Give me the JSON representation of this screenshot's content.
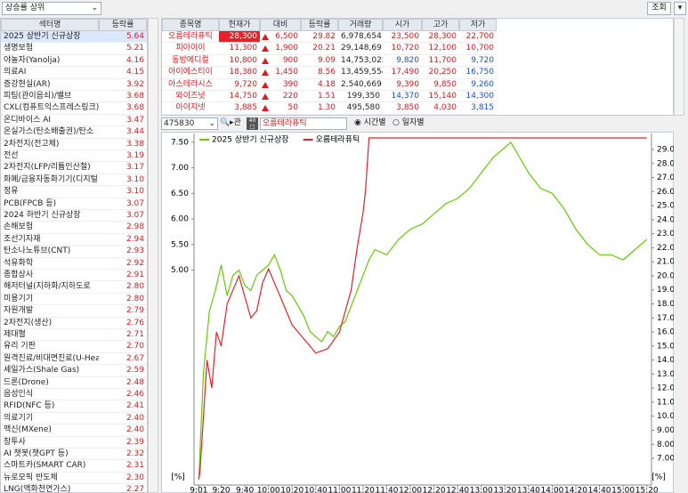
{
  "toolbar": {
    "filter": "상승률 상위",
    "search_button": "조회"
  },
  "sector_table": {
    "columns": [
      "섹터명",
      "등락률"
    ],
    "rows": [
      [
        "2025 상반기 신규상장",
        "5.64"
      ],
      [
        "생명보험",
        "5.21"
      ],
      [
        "야놀자(Yanolja)",
        "4.16"
      ],
      [
        "의료AI",
        "4.15"
      ],
      [
        "증강현실(AR)",
        "3.92"
      ],
      [
        "피팅(관이음쇠)/밸브",
        "3.68"
      ],
      [
        "CXL(컴퓨트익스프레스링크)",
        "3.68"
      ],
      [
        "온디바이스 AI",
        "3.47"
      ],
      [
        "온실가스(탄소배출권)/탄소",
        "3.44"
      ],
      [
        "2차전지(전고체)",
        "3.38"
      ],
      [
        "전선",
        "3.19"
      ],
      [
        "2차전지(LFP/리튬인산철)",
        "3.17"
      ],
      [
        "화폐/금융자동화기기(디지털",
        "3.10"
      ],
      [
        "정유",
        "3.10"
      ],
      [
        "PCB(FPCB 등)",
        "3.07"
      ],
      [
        "2024 하반기 신규상장",
        "3.07"
      ],
      [
        "손해보험",
        "2.98"
      ],
      [
        "조선기자재",
        "2.94"
      ],
      [
        "탄소나노튜브(CNT)",
        "2.93"
      ],
      [
        "석유화학",
        "2.92"
      ],
      [
        "종합상사",
        "2.91"
      ],
      [
        "해저터널(지하화/지하도로",
        "2.80"
      ],
      [
        "미용기기",
        "2.80"
      ],
      [
        "자원개발",
        "2.79"
      ],
      [
        "2차전지(생산)",
        "2.76"
      ],
      [
        "제대혈",
        "2.71"
      ],
      [
        "유리 기판",
        "2.70"
      ],
      [
        "원격진료/비대면진료(U-Hea",
        "2.67"
      ],
      [
        "셰일가스(Shale Gas)",
        "2.59"
      ],
      [
        "드론(Drone)",
        "2.48"
      ],
      [
        "음성인식",
        "2.46"
      ],
      [
        "RFID(NFC 등)",
        "2.41"
      ],
      [
        "의료기기",
        "2.40"
      ],
      [
        "맥신(MXene)",
        "2.40"
      ],
      [
        "창투사",
        "2.39"
      ],
      [
        "AI 챗봇(챗GPT 등)",
        "2.32"
      ],
      [
        "스마트카(SMART CAR)",
        "2.31"
      ],
      [
        "뉴로모픽 반도체",
        "2.30"
      ],
      [
        "LNG(액화천연가스)",
        "2.27"
      ]
    ]
  },
  "stock_table": {
    "columns": [
      "종목명",
      "현재가",
      "대비",
      "등락률",
      "거래량",
      "시가",
      "고가",
      "저가"
    ],
    "rows": [
      [
        "오름테라퓨틱",
        "28,300",
        "6,500",
        "29.82",
        "6,978,654",
        "23,500",
        "28,300",
        "22,700"
      ],
      [
        "피아이이",
        "11,300",
        "1,900",
        "20.21",
        "29,148,691",
        "10,720",
        "12,100",
        "10,700"
      ],
      [
        "동방메디컬",
        "10,800",
        "900",
        "9.09",
        "14,753,025",
        "9,820",
        "11,700",
        "9,720"
      ],
      [
        "아이에스티이",
        "18,380",
        "1,450",
        "8.56",
        "13,459,554",
        "17,490",
        "20,250",
        "16,750"
      ],
      [
        "아스테라시스",
        "9,720",
        "390",
        "4.18",
        "2,540,669",
        "9,390",
        "9,850",
        "9,260"
      ],
      [
        "와이즈넛",
        "14,750",
        "220",
        "1.51",
        "199,350",
        "14,370",
        "15,140",
        "14,300"
      ],
      [
        "아이지넷",
        "3,885",
        "50",
        "1.30",
        "495,580",
        "3,850",
        "4,030",
        "3,815"
      ]
    ]
  },
  "chart_controls": {
    "code": "475830",
    "name": "오름테라퓨틱",
    "options": [
      "시간별",
      "일자별"
    ]
  },
  "chart_data": {
    "type": "line",
    "series": [
      {
        "name": "2025 상반기 신규상장",
        "color": "#66cc00",
        "axis": "y",
        "x": [
          "9:01",
          "9:05",
          "9:10",
          "9:15",
          "9:20",
          "9:25",
          "9:30",
          "9:35",
          "9:40",
          "9:45",
          "9:50",
          "9:55",
          "10:00",
          "10:05",
          "10:10",
          "10:15",
          "10:20",
          "10:25",
          "10:30",
          "10:35",
          "10:40",
          "10:45",
          "10:50",
          "10:55",
          "11:00",
          "11:05",
          "11:10",
          "11:15",
          "11:20",
          "11:25",
          "11:30",
          "11:40",
          "11:50",
          "12:00",
          "12:10",
          "12:20",
          "12:30",
          "12:40",
          "12:50",
          "13:00",
          "13:10",
          "13:20",
          "13:25",
          "13:30",
          "13:40",
          "13:50",
          "14:00",
          "14:10",
          "14:20",
          "14:30",
          "14:40",
          "14:50",
          "15:00",
          "15:10",
          "15:20"
        ],
        "values": [
          0.9,
          3.0,
          4.2,
          4.6,
          5.1,
          4.5,
          4.9,
          5.0,
          4.7,
          4.6,
          4.9,
          5.0,
          5.1,
          5.3,
          5.0,
          4.6,
          4.5,
          4.3,
          4.1,
          3.8,
          3.7,
          3.6,
          3.8,
          3.7,
          3.9,
          4.0,
          4.3,
          4.6,
          4.9,
          5.2,
          5.4,
          5.3,
          5.6,
          5.8,
          5.9,
          6.1,
          6.3,
          6.4,
          6.6,
          6.9,
          7.2,
          7.4,
          7.5,
          7.3,
          6.9,
          6.6,
          6.5,
          6.2,
          5.8,
          5.5,
          5.3,
          5.3,
          5.2,
          5.4,
          5.6
        ]
      },
      {
        "name": "오름테라퓨틱",
        "color": "#e8202a",
        "axis": "y2",
        "x": [
          "9:01",
          "9:02",
          "9:05",
          "9:08",
          "9:12",
          "9:16",
          "9:20",
          "9:25",
          "9:30",
          "9:35",
          "9:40",
          "9:45",
          "9:50",
          "9:55",
          "10:00",
          "10:05",
          "10:10",
          "10:15",
          "10:20",
          "10:30",
          "10:40",
          "10:50",
          "11:00",
          "11:05",
          "11:10",
          "11:15",
          "11:20",
          "11:22",
          "11:25",
          "15:20"
        ],
        "values": [
          5.5,
          6,
          10,
          14,
          12,
          16,
          15,
          18,
          19,
          20,
          18.5,
          17,
          17.5,
          19.5,
          20.5,
          19.5,
          18.5,
          17.5,
          16.5,
          15.5,
          14.5,
          14.8,
          16,
          17.5,
          19,
          22,
          24.5,
          26,
          29.82,
          29.82
        ]
      }
    ],
    "xlim": [
      "8:57",
      "15:24"
    ],
    "xticks": [
      "9:01",
      "9:20",
      "9:40",
      "10:00",
      "10:20",
      "10:40",
      "11:00",
      "11:20",
      "11:40",
      "12:00",
      "12:20",
      "12:40",
      "13:00",
      "13:20",
      "13:40",
      "14:00",
      "14:20",
      "14:40",
      "15:00",
      "15:20"
    ],
    "ylim": [
      0.8,
      7.67
    ],
    "yticks": [
      {
        "value": 5,
        "label": "5.00"
      },
      {
        "value": 5.5,
        "label": "5.50"
      },
      {
        "value": 6,
        "label": "6.00"
      },
      {
        "value": 6.5,
        "label": "6.50"
      },
      {
        "value": 7,
        "label": "7.00"
      },
      {
        "value": 7.5,
        "label": "7.50"
      }
    ],
    "y2lim": [
      5.1,
      30.14
    ],
    "y2ticks": [
      {
        "value": 7,
        "label": "7.00"
      },
      {
        "value": 8,
        "label": "8.00"
      },
      {
        "value": 9,
        "label": "9.00"
      },
      {
        "value": 10,
        "label": "10.00"
      },
      {
        "value": 11,
        "label": "11.00"
      },
      {
        "value": 12,
        "label": "12.00"
      },
      {
        "value": 13,
        "label": "13.00"
      },
      {
        "value": 14,
        "label": "14.00"
      },
      {
        "value": 15,
        "label": "15.00"
      },
      {
        "value": 16,
        "label": "16.00"
      },
      {
        "value": 17,
        "label": "17.00"
      },
      {
        "value": 18,
        "label": "18.00"
      },
      {
        "value": 19,
        "label": "19.00"
      },
      {
        "value": 20,
        "label": "20.00"
      },
      {
        "value": 21,
        "label": "21.00"
      },
      {
        "value": 22,
        "label": "22.00"
      },
      {
        "value": 23,
        "label": "23.00"
      },
      {
        "value": 24,
        "label": "24.00"
      },
      {
        "value": 25,
        "label": "25.00"
      },
      {
        "value": 26,
        "label": "26.00"
      },
      {
        "value": 27,
        "label": "27.00"
      },
      {
        "value": 28,
        "label": "28.00"
      },
      {
        "value": 29,
        "label": "29.00"
      }
    ],
    "y_unit": "[%]",
    "y2_unit": "[%]",
    "grid": false
  }
}
